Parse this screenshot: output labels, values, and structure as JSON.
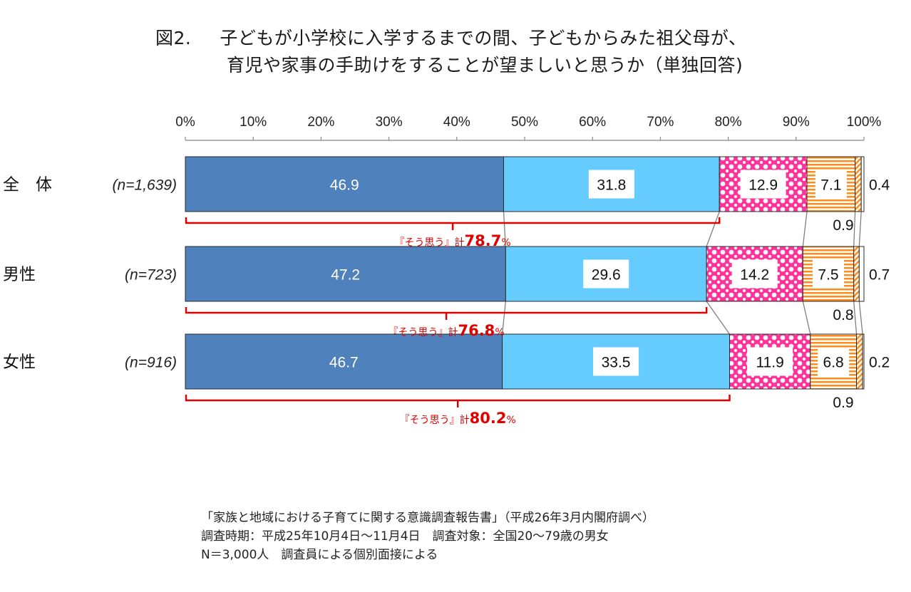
{
  "title": {
    "fig": "図2.",
    "line1": "子どもが小学校に入学するまでの間、子どもからみた祖父母が、",
    "line2": "育児や家事の手助けをすることが望ましいと思うか（単独回答)"
  },
  "chart_data": {
    "type": "bar",
    "orientation": "horizontal",
    "stacked": true,
    "xlim": [
      0,
      100
    ],
    "ticks": [
      "0%",
      "10%",
      "20%",
      "30%",
      "40%",
      "50%",
      "60%",
      "70%",
      "80%",
      "90%",
      "100%"
    ],
    "categories": [
      {
        "label": "全　体",
        "n": "(n=1,639)"
      },
      {
        "label": "男性",
        "n": "(n=723)"
      },
      {
        "label": "女性",
        "n": "(n=916)"
      }
    ],
    "series": [
      {
        "values": [
          46.9,
          47.2,
          46.7
        ],
        "labels": [
          "46.9",
          "47.2",
          "46.7"
        ],
        "color": "#4f81bd",
        "pattern": "solid"
      },
      {
        "values": [
          31.8,
          29.6,
          33.5
        ],
        "labels": [
          "31.8",
          "29.6",
          "33.5"
        ],
        "color": "#66ccff",
        "pattern": "solid"
      },
      {
        "values": [
          12.9,
          14.2,
          11.9
        ],
        "labels": [
          "12.9",
          "14.2",
          "11.9"
        ],
        "color": "#ff3399",
        "pattern": "dots"
      },
      {
        "values": [
          7.1,
          7.5,
          6.8
        ],
        "labels": [
          "7.1",
          "7.5",
          "6.8"
        ],
        "color": "#ff8c1a",
        "pattern": "hlines"
      },
      {
        "values": [
          0.9,
          0.8,
          0.9
        ],
        "labels": [
          "0.9",
          "0.8",
          "0.9"
        ],
        "color": "#ff8c1a",
        "pattern": "diag"
      },
      {
        "values": [
          0.4,
          0.7,
          0.2
        ],
        "labels": [
          "0.4",
          "0.7",
          "0.2"
        ],
        "color": "#ffffff",
        "pattern": "empty"
      }
    ],
    "totals": [
      {
        "prefix": "『そう思う』計",
        "value": "78.7",
        "unit": "%"
      },
      {
        "prefix": "『そう思う』計",
        "value": "76.8",
        "unit": "%"
      },
      {
        "prefix": "『そう思う』計",
        "value": "80.2",
        "unit": "%"
      }
    ],
    "accent_color": "#e00000"
  },
  "footer": {
    "line1": "「家族と地域における子育てに関する意識調査報告書」（平成26年3月内閣府調べ）",
    "line2": "調査時期：平成25年10月4日～11月4日　調査対象：全国20～79歳の男女",
    "line3": "N＝3,000人　調査員による個別面接による"
  }
}
